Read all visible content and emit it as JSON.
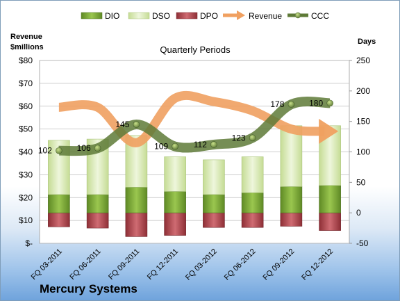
{
  "company": "Mercury Systems",
  "chart_data": {
    "type": "bar",
    "title": "Quarterly Periods",
    "ylabel_left": "Revenue $millions",
    "ylabel_right": "Days",
    "categories": [
      "FQ 03-2011",
      "FQ 06-2011",
      "FQ 09-2011",
      "FQ 12-2011",
      "FQ 03-2012",
      "FQ 06-2012",
      "FQ 09-2012",
      "FQ 12-2012"
    ],
    "left_ticks": [
      "$-",
      "$10",
      "$20",
      "$30",
      "$40",
      "$50",
      "$60",
      "$70",
      "$80"
    ],
    "right_ticks": [
      "-50",
      "0",
      "50",
      "100",
      "150",
      "200",
      "250"
    ],
    "ylim_left": [
      0,
      80
    ],
    "ylim_right": [
      -50,
      250
    ],
    "legend_position": "top",
    "legend": [
      "DIO",
      "DSO",
      "DPO",
      "Revenue",
      "CCC"
    ],
    "series": [
      {
        "name": "DIO",
        "axis": "right",
        "color": "#7aa73a",
        "values": [
          30,
          30,
          42,
          35,
          30,
          33,
          43,
          45
        ]
      },
      {
        "name": "DSO",
        "axis": "right",
        "color": "#d7e8b0",
        "values": [
          89,
          91,
          85,
          57,
          57,
          59,
          100,
          98
        ]
      },
      {
        "name": "DPO",
        "axis": "right",
        "color": "#b84a52",
        "values": [
          -23,
          -25,
          -39,
          -37,
          -24,
          -24,
          -22,
          -29
        ]
      },
      {
        "name": "Revenue",
        "axis": "left",
        "color": "#f0a060",
        "values": [
          59.5,
          59.5,
          44,
          63.5,
          62,
          58,
          50,
          49
        ]
      },
      {
        "name": "CCC",
        "axis": "right",
        "color": "#5e7a37",
        "values": [
          102,
          106,
          145,
          109,
          112,
          123,
          178,
          180
        ]
      }
    ],
    "ccc_labels": [
      "102",
      "106",
      "145",
      "109",
      "112",
      "123",
      "178",
      "180"
    ]
  }
}
